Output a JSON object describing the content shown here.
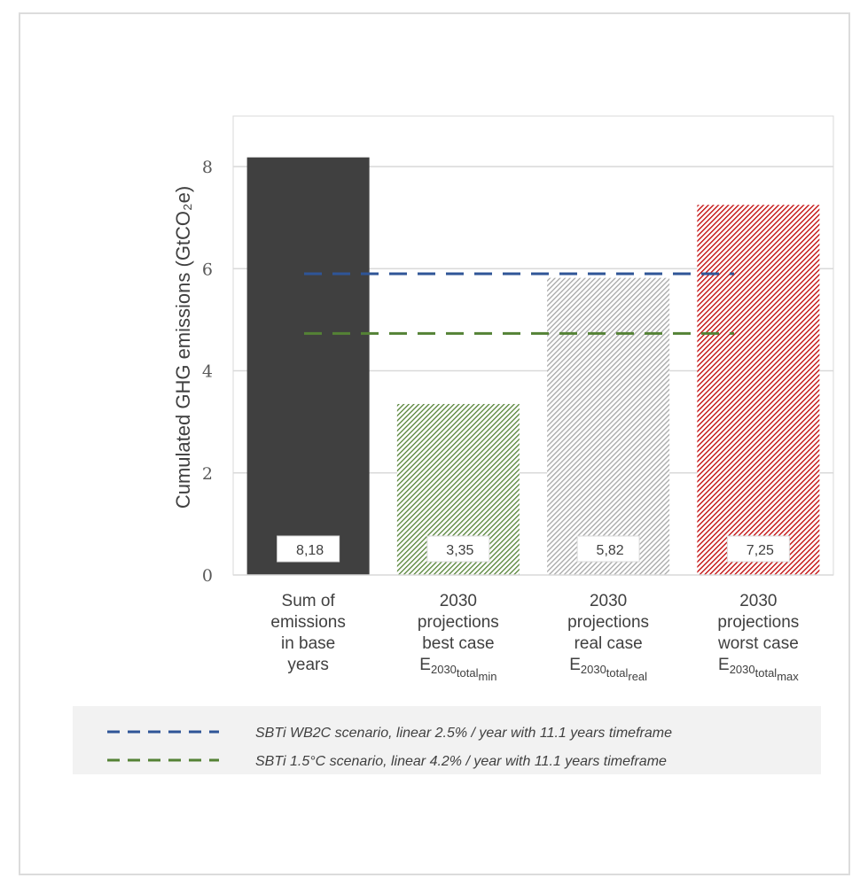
{
  "chart_data": {
    "type": "bar",
    "ylabel": "Cumulated GHG emissions (GtCO₂e)",
    "ylim": [
      0,
      9
    ],
    "yticks": [
      0,
      2,
      4,
      6,
      8
    ],
    "grid": true,
    "legend_position": "bottom",
    "categories": [
      {
        "lines": [
          "Sum of",
          "emissions",
          "in base",
          "years"
        ],
        "sub": null
      },
      {
        "lines": [
          "2030",
          "projections",
          "best case"
        ],
        "sub": {
          "base": "E",
          "s1": "2030",
          "s2": "total",
          "s3": "min"
        }
      },
      {
        "lines": [
          "2030",
          "projections",
          "real case"
        ],
        "sub": {
          "base": "E",
          "s1": "2030",
          "s2": "total",
          "s3": "real"
        }
      },
      {
        "lines": [
          "2030",
          "projections",
          "worst case"
        ],
        "sub": {
          "base": "E",
          "s1": "2030",
          "s2": "total",
          "s3": "max"
        }
      }
    ],
    "values": [
      8.18,
      3.35,
      5.82,
      7.25
    ],
    "data_labels": [
      "8,18",
      "3,35",
      "5,82",
      "7,25"
    ],
    "bar_styles": [
      {
        "color": "#404040",
        "hatch": false
      },
      {
        "color": "#548235",
        "hatch": true
      },
      {
        "color": "#a6a6a6",
        "hatch": true
      },
      {
        "color": "#c00000",
        "hatch": true
      }
    ],
    "reference_lines": [
      {
        "name": "SBTi WB2C scenario, linear 2.5% / year with 11.1 years timeframe",
        "value": 5.9,
        "color": "#2f5597"
      },
      {
        "name": "SBTi 1.5°C scenario, linear 4.2% / year with 11.1 years timeframe",
        "value": 4.73,
        "color": "#548235"
      }
    ]
  }
}
